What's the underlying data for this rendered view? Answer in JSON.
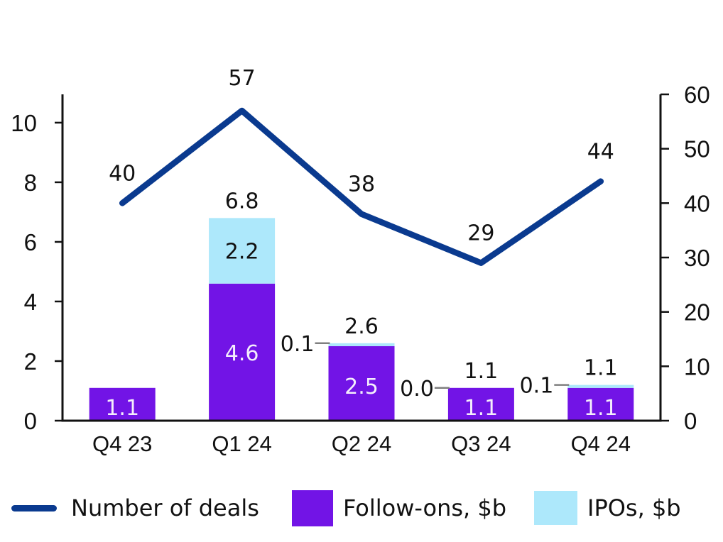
{
  "chart_data": {
    "type": "bar+line",
    "categories": [
      "Q4 23",
      "Q1 24",
      "Q2 24",
      "Q3 24",
      "Q4 24"
    ],
    "series": [
      {
        "name": "Follow-ons, $b",
        "type": "bar",
        "axis": "left",
        "color": "#7214e6",
        "values": [
          1.1,
          4.6,
          2.5,
          1.1,
          1.1
        ],
        "labels": [
          "1.1",
          "4.6",
          "2.5",
          "1.1",
          "1.1"
        ]
      },
      {
        "name": "IPOs, $b",
        "type": "bar",
        "axis": "left",
        "color": "#ade8fb",
        "values": [
          0.0,
          2.2,
          0.1,
          0.0,
          0.1
        ],
        "labels": [
          "",
          "2.2",
          "0.1",
          "0.0",
          "0.1"
        ]
      },
      {
        "name": "Number of deals",
        "type": "line",
        "axis": "right",
        "color": "#0a3a8f",
        "values": [
          40,
          57,
          38,
          29,
          44
        ],
        "labels": [
          "40",
          "57",
          "38",
          "29",
          "44"
        ]
      }
    ],
    "totals": [
      "",
      "6.8",
      "2.6",
      "1.1",
      "1.1"
    ],
    "left_axis": {
      "ylim": [
        0,
        10.95
      ],
      "ticks": [
        0,
        2,
        4,
        6,
        8,
        10
      ],
      "tick_labels": [
        "0",
        "2",
        "4",
        "6",
        "8",
        "10"
      ]
    },
    "right_axis": {
      "ylim": [
        0,
        60
      ],
      "ticks": [
        0,
        10,
        20,
        30,
        40,
        50,
        60
      ],
      "tick_labels": [
        "0",
        "10",
        "20",
        "30",
        "40",
        "50",
        "60"
      ]
    },
    "grid": false,
    "legend_position": "bottom",
    "title": "",
    "xlabel": "",
    "ylabel": ""
  },
  "legend": {
    "deals": "Number of deals",
    "followons": "Follow-ons, $b",
    "ipos": "IPOs, $b"
  }
}
